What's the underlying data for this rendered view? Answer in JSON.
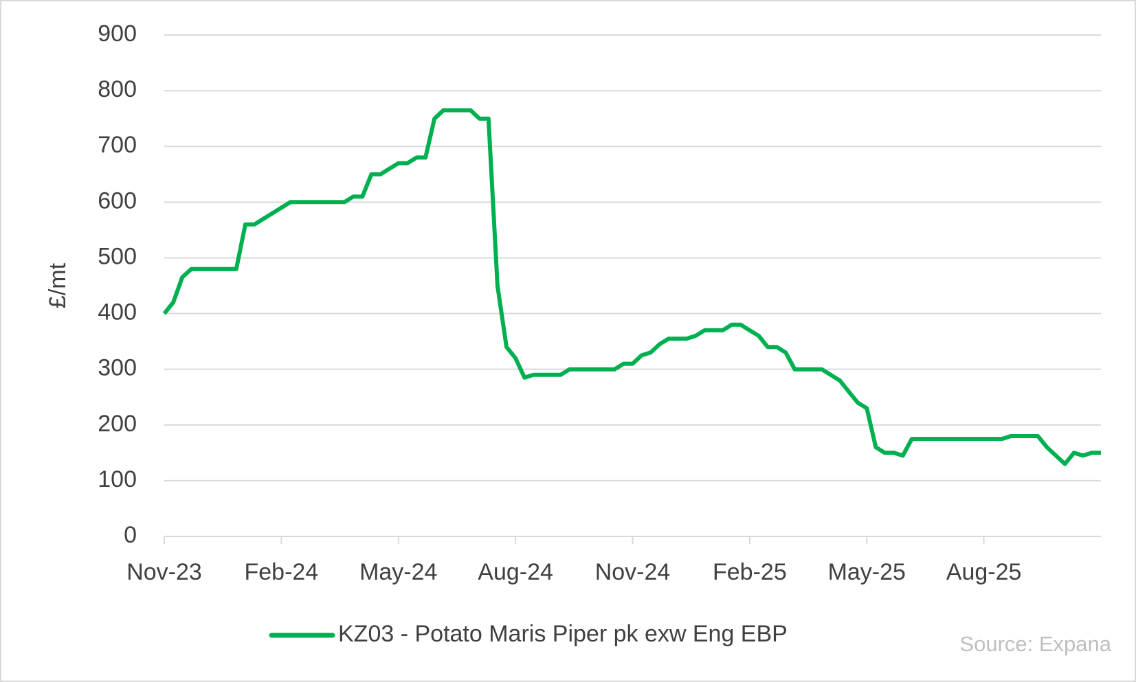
{
  "chart_data": {
    "type": "line",
    "y_label": "£/mt",
    "source": "Source: Expana",
    "categories": [
      "Nov-23",
      null,
      null,
      null,
      null,
      null,
      null,
      null,
      null,
      null,
      null,
      null,
      null,
      "Feb-24",
      null,
      null,
      null,
      null,
      null,
      null,
      null,
      null,
      null,
      null,
      null,
      null,
      "May-24",
      null,
      null,
      null,
      null,
      null,
      null,
      null,
      null,
      null,
      null,
      null,
      null,
      "Aug-24",
      null,
      null,
      null,
      null,
      null,
      null,
      null,
      null,
      null,
      null,
      null,
      null,
      "Nov-24",
      null,
      null,
      null,
      null,
      null,
      null,
      null,
      null,
      null,
      null,
      null,
      null,
      "Feb-25",
      null,
      null,
      null,
      null,
      null,
      null,
      null,
      null,
      null,
      null,
      null,
      null,
      "May-25",
      null,
      null,
      null,
      null,
      null,
      null,
      null,
      null,
      null,
      null,
      null,
      null,
      "Aug-25",
      null,
      null,
      null,
      null,
      null,
      null,
      null,
      null,
      null,
      null,
      null,
      null,
      null
    ],
    "series": [
      {
        "name": "KZ03 - Potato Maris Piper pk exw Eng EBP",
        "color": "#00b050",
        "values": [
          400,
          420,
          465,
          480,
          480,
          480,
          480,
          480,
          480,
          560,
          560,
          570,
          580,
          590,
          600,
          600,
          600,
          600,
          600,
          600,
          600,
          610,
          610,
          650,
          650,
          660,
          670,
          670,
          680,
          680,
          750,
          765,
          765,
          765,
          765,
          750,
          750,
          450,
          340,
          320,
          285,
          290,
          290,
          290,
          290,
          300,
          300,
          300,
          300,
          300,
          300,
          310,
          310,
          325,
          330,
          345,
          355,
          355,
          355,
          360,
          370,
          370,
          370,
          380,
          380,
          370,
          360,
          340,
          340,
          330,
          300,
          300,
          300,
          300,
          290,
          280,
          260,
          240,
          230,
          160,
          150,
          150,
          145,
          175,
          175,
          175,
          175,
          175,
          175,
          175,
          175,
          175,
          175,
          175,
          180,
          180,
          180,
          180,
          160,
          145,
          130,
          150,
          145,
          150,
          150
        ]
      }
    ],
    "ylim": [
      0,
      900
    ],
    "yticks": [
      0,
      100,
      200,
      300,
      400,
      500,
      600,
      700,
      800,
      900
    ],
    "grid": true
  }
}
